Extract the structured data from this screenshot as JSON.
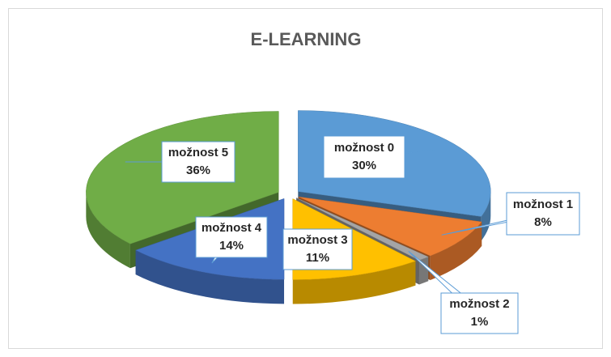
{
  "chart_data": {
    "type": "pie3d",
    "title": "E-LEARNING",
    "categories": [
      "možnost 0",
      "možnost 1",
      "možnost 2",
      "možnost 3",
      "možnost 4",
      "možnost 5"
    ],
    "values": [
      30,
      8,
      1,
      11,
      14,
      36
    ],
    "value_labels": [
      "30%",
      "8%",
      "1%",
      "11%",
      "14%",
      "36%"
    ],
    "colors": [
      "#5b9bd5",
      "#ed7d31",
      "#a5a5a5",
      "#ffc000",
      "#4472c4",
      "#70ad47"
    ]
  }
}
